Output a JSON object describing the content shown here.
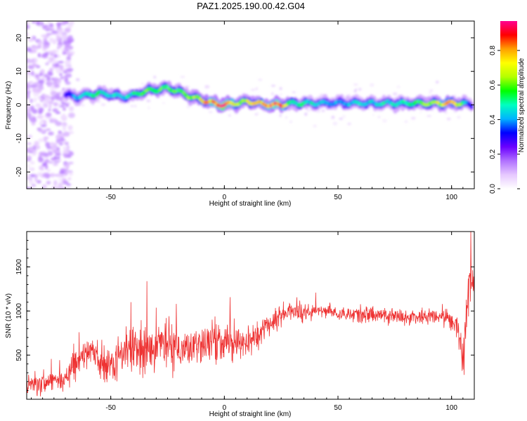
{
  "chart_data": [
    {
      "type": "heatmap",
      "title": "PAZ1.2025.190.00.42.G04",
      "xlabel": "Height of straight line (km)",
      "ylabel": "Frequency (Hz)",
      "colorbar_label": "Normalized spectral amplitude",
      "xlim": [
        -87,
        110
      ],
      "ylim": [
        -25,
        25
      ],
      "x_ticks": [
        -50,
        0,
        50,
        100
      ],
      "y_ticks": [
        -20,
        -10,
        0,
        10,
        20
      ],
      "colorbar_range": [
        0.0,
        0.97
      ],
      "colorbar_ticks": [
        0.0,
        0.2,
        0.4,
        0.6,
        0.8
      ],
      "colormap": [
        "#ffffff",
        "#e6c8ff",
        "#b070ff",
        "#6a00ff",
        "#0000ff",
        "#00b4ff",
        "#00ffc0",
        "#00ff00",
        "#b4ff00",
        "#ffff00",
        "#ffa000",
        "#ff0000",
        "#ff0090"
      ],
      "ridge": {
        "x": [
          -70,
          -65,
          -60,
          -55,
          -50,
          -45,
          -40,
          -35,
          -30,
          -25,
          -20,
          -15,
          -10,
          -5,
          0,
          5,
          10,
          15,
          20,
          25,
          30,
          40,
          50,
          60,
          70,
          80,
          90,
          100,
          105,
          108
        ],
        "frequency": [
          3.0,
          2.5,
          3.0,
          3.5,
          3.0,
          2.5,
          3.0,
          4.0,
          4.5,
          5.0,
          4.0,
          2.5,
          1.5,
          0.5,
          0.0,
          0.5,
          1.0,
          0.5,
          0.0,
          0.0,
          0.5,
          0.5,
          0.5,
          0.5,
          0.5,
          0.5,
          0.5,
          0.5,
          0.5,
          0.0
        ],
        "peak_amplitude": [
          0.3,
          0.4,
          0.5,
          0.5,
          0.45,
          0.4,
          0.5,
          0.55,
          0.6,
          0.55,
          0.55,
          0.6,
          0.7,
          0.8,
          0.95,
          0.7,
          0.65,
          0.75,
          0.85,
          0.85,
          0.5,
          0.45,
          0.4,
          0.45,
          0.45,
          0.5,
          0.6,
          0.8,
          0.55,
          0.3
        ]
      }
    },
    {
      "type": "line",
      "xlabel": "Height of straight line (km)",
      "ylabel": "SNR (10 * v/v)",
      "color": "#ee3333",
      "xlim": [
        -87,
        110
      ],
      "ylim": [
        0,
        1900
      ],
      "x_ticks": [
        -50,
        0,
        50,
        100
      ],
      "y_ticks": [
        500,
        1000,
        1500
      ],
      "x": [
        -87,
        -80,
        -75,
        -70,
        -65,
        -60,
        -55,
        -50,
        -45,
        -40,
        -35,
        -30,
        -25,
        -20,
        -15,
        -10,
        -5,
        0,
        5,
        10,
        15,
        20,
        25,
        30,
        35,
        40,
        45,
        50,
        55,
        60,
        65,
        70,
        75,
        80,
        85,
        90,
        95,
        100,
        103,
        105,
        107,
        108,
        110
      ],
      "mean": [
        150,
        200,
        230,
        250,
        400,
        550,
        450,
        400,
        500,
        550,
        550,
        600,
        650,
        550,
        550,
        600,
        650,
        650,
        650,
        600,
        750,
        850,
        950,
        1000,
        1000,
        1000,
        990,
        980,
        970,
        960,
        960,
        950,
        940,
        930,
        930,
        930,
        940,
        900,
        850,
        400,
        1200,
        1500,
        1300
      ],
      "spread": [
        130,
        150,
        170,
        200,
        250,
        300,
        280,
        280,
        300,
        320,
        350,
        350,
        380,
        320,
        300,
        300,
        280,
        250,
        250,
        250,
        200,
        180,
        150,
        130,
        120,
        110,
        110,
        110,
        110,
        110,
        110,
        110,
        110,
        110,
        110,
        120,
        130,
        150,
        250,
        350,
        400,
        400,
        300
      ]
    }
  ]
}
